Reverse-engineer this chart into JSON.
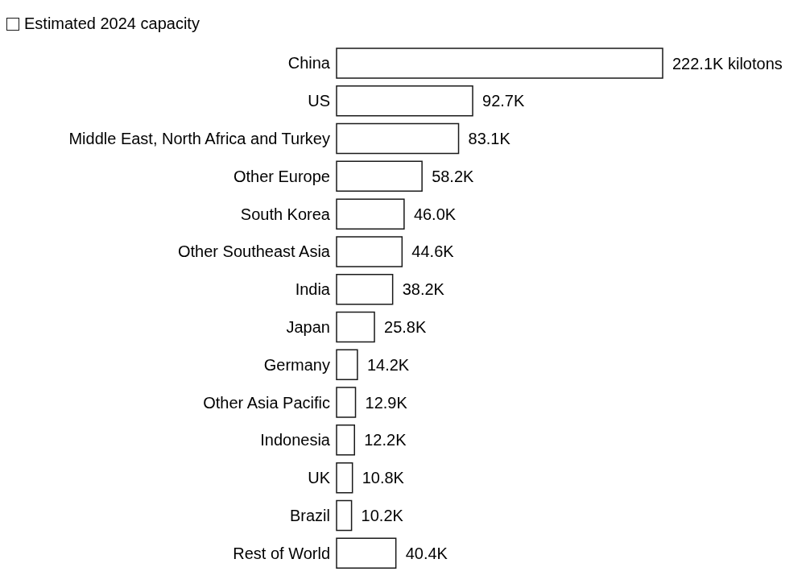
{
  "chart_data": {
    "type": "bar",
    "orientation": "horizontal",
    "legend": "top left",
    "categories": [
      "China",
      "US",
      "Middle East, North Africa and Turkey",
      "Other Europe",
      "South Korea",
      "Other Southeast Asia",
      "India",
      "Japan",
      "Germany",
      "Other Asia Pacific",
      "Indonesia",
      "UK",
      "Brazil",
      "Rest of World"
    ],
    "series": [
      {
        "name": "Estimated 2024 capacity",
        "color": "#1a1a1a",
        "values": [
          222.1,
          92.7,
          83.1,
          58.2,
          46.0,
          44.6,
          38.2,
          25.8,
          14.2,
          12.9,
          12.2,
          10.8,
          10.2,
          40.4
        ],
        "value_labels": [
          "222.1K kilotons",
          "92.7K",
          "83.1K",
          "58.2K",
          "46.0K",
          "44.6K",
          "38.2K",
          "25.8K",
          "14.2K",
          "12.9K",
          "12.2K",
          "10.8K",
          "10.2K",
          "40.4K"
        ]
      }
    ]
  }
}
